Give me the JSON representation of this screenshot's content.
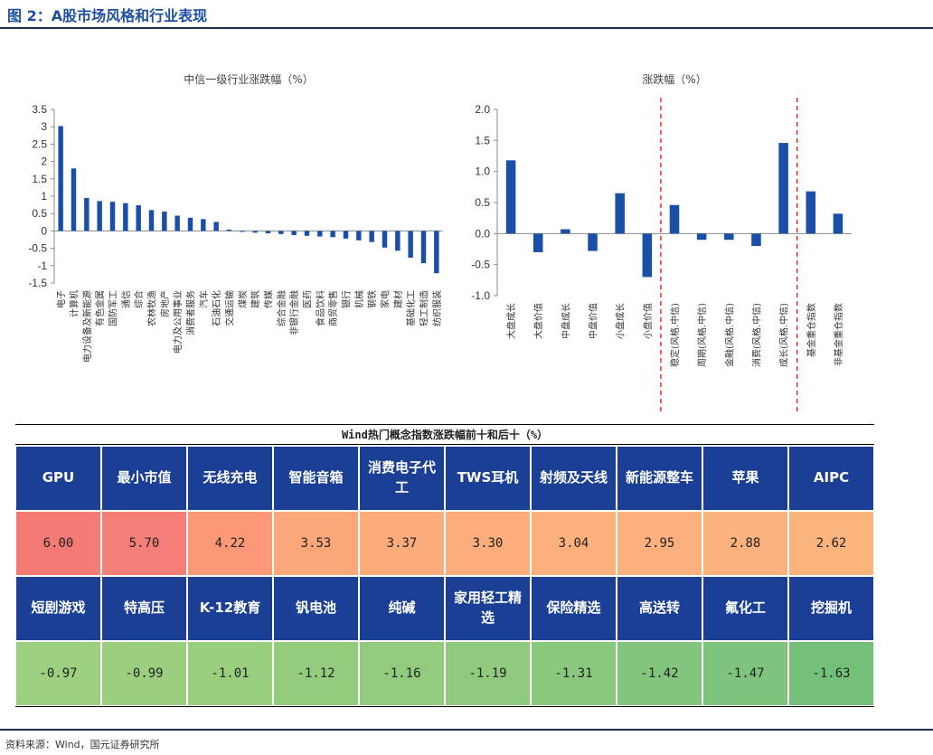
{
  "figure_title": "图 2：A股市场风格和行业表现",
  "source": "资料来源：Wind，国元证券研究所",
  "colors": {
    "bar": "#1a4fa8",
    "divider": "#d9342b",
    "header_bg": "#1a3f95",
    "rule": "#1f2d4a"
  },
  "chart_data": [
    {
      "type": "bar",
      "title": "中信一级行业涨跌幅（%）",
      "categories": [
        "电子",
        "计算机",
        "电力设备及新能源",
        "有色金属",
        "国防军工",
        "通信",
        "综合",
        "农林牧渔",
        "房地产",
        "电力及公用事业",
        "消费者服务",
        "汽车",
        "石油石化",
        "交通运输",
        "煤炭",
        "建筑",
        "传媒",
        "综合金融",
        "非银行金融",
        "医药",
        "食品饮料",
        "商贸零售",
        "银行",
        "机械",
        "钢铁",
        "家电",
        "建材",
        "基础化工",
        "轻工制造",
        "纺织服装"
      ],
      "values": [
        3.02,
        1.8,
        0.95,
        0.86,
        0.84,
        0.8,
        0.74,
        0.6,
        0.56,
        0.44,
        0.38,
        0.34,
        0.26,
        0.04,
        -0.02,
        -0.05,
        -0.07,
        -0.09,
        -0.12,
        -0.14,
        -0.16,
        -0.18,
        -0.22,
        -0.27,
        -0.32,
        -0.48,
        -0.57,
        -0.77,
        -0.93,
        -1.22
      ],
      "yticks": [
        "3.5",
        "3",
        "2.5",
        "2",
        "1.5",
        "1",
        "0.5",
        "0",
        "-0.5",
        "-1",
        "-1.5"
      ],
      "ylim": [
        -1.5,
        3.5
      ]
    },
    {
      "type": "bar",
      "title": "涨跌幅（%）",
      "categories": [
        "大盘成长",
        "大盘价值",
        "中盘成长",
        "中盘价值",
        "小盘成长",
        "小盘价值",
        "稳定(风格.中信)",
        "周期(风格.中信)",
        "金融(风格.中信)",
        "消费(风格.中信)",
        "成长(风格.中信)",
        "基金重仓指数",
        "非基金重仓指数"
      ],
      "values": [
        1.18,
        -0.3,
        0.07,
        -0.28,
        0.65,
        -0.7,
        0.46,
        -0.1,
        -0.1,
        -0.2,
        1.46,
        0.68,
        0.32
      ],
      "yticks": [
        "2.0",
        "1.5",
        "1.0",
        "0.5",
        "0.0",
        "-0.5",
        "-1.0"
      ],
      "ylim": [
        -1.0,
        2.0
      ],
      "dividers_after": [
        5,
        10
      ]
    },
    {
      "type": "table",
      "title": "Wind热门概念指数涨跌幅前十和后十（%）",
      "top": {
        "names": [
          "GPU",
          "最小市值",
          "无线充电",
          "智能音箱",
          "消费电子代工",
          "TWS耳机",
          "射频及天线",
          "新能源整车",
          "苹果",
          "AIPC"
        ],
        "values": [
          "6.00",
          "5.70",
          "4.22",
          "3.53",
          "3.37",
          "3.30",
          "3.04",
          "2.95",
          "2.88",
          "2.62"
        ],
        "colors": [
          "#f47a76",
          "#f47f76",
          "#fb9877",
          "#fca77a",
          "#fcab7a",
          "#fcad7b",
          "#fcb07c",
          "#fcb17c",
          "#fcb27c",
          "#fcb47d"
        ]
      },
      "bottom": {
        "names": [
          "短剧游戏",
          "特高压",
          "K-12教育",
          "钒电池",
          "纯碱",
          "家用轻工精选",
          "保险精选",
          "高送转",
          "氟化工",
          "挖掘机"
        ],
        "values": [
          "-0.97",
          "-0.99",
          "-1.01",
          "-1.12",
          "-1.16",
          "-1.19",
          "-1.31",
          "-1.42",
          "-1.47",
          "-1.63"
        ],
        "colors": [
          "#9ccf7f",
          "#9bcf7f",
          "#99ce7f",
          "#94cc7e",
          "#92cb7e",
          "#90ca7e",
          "#89c87d",
          "#82c57c",
          "#7ec47c",
          "#74c07b"
        ]
      }
    }
  ]
}
